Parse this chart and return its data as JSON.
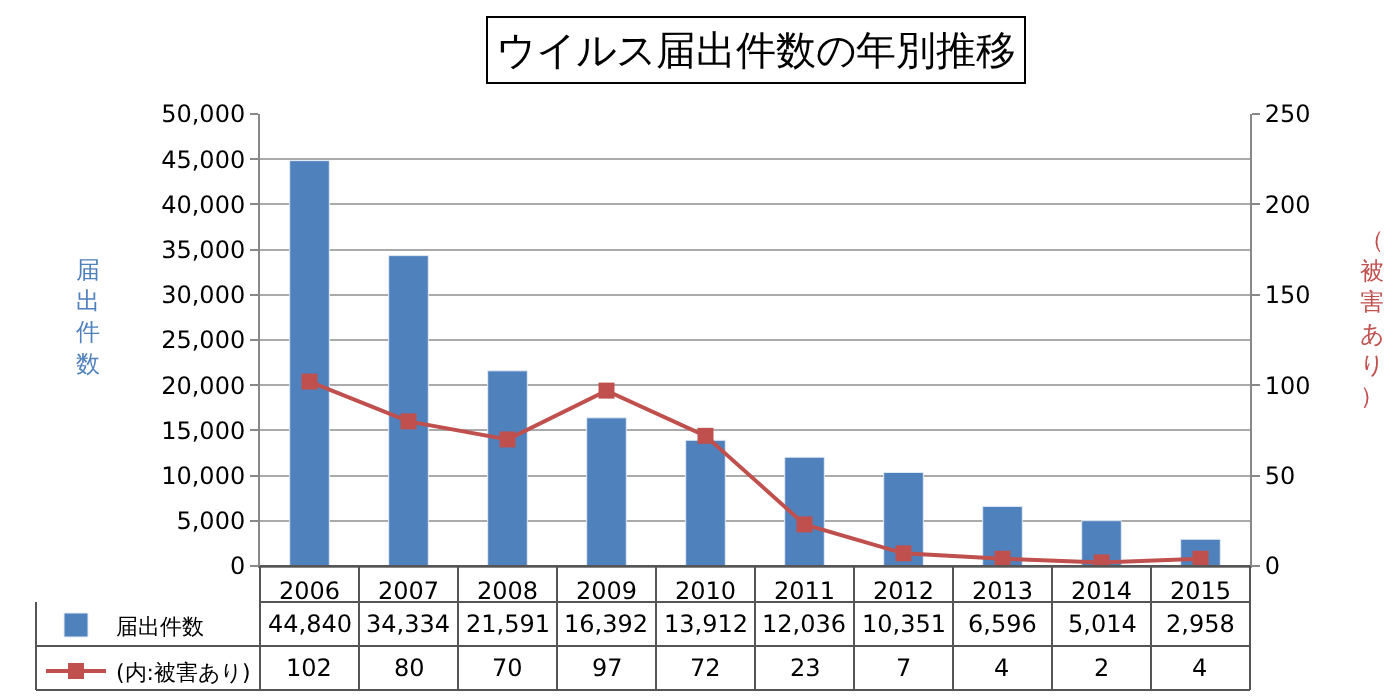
{
  "chart_data": {
    "type": "bar",
    "title": "ウイルス届出件数の年別推移",
    "ylabel": "届出件数",
    "y2label": "（被害あり）",
    "categories": [
      "2006",
      "2007",
      "2008",
      "2009",
      "2010",
      "2011",
      "2012",
      "2013",
      "2014",
      "2015"
    ],
    "series": [
      {
        "name": "届出件数",
        "color": "#4f81bd",
        "values": [
          44840,
          34334,
          21591,
          16392,
          13912,
          12036,
          10351,
          6596,
          5014,
          2958
        ],
        "value_labels": [
          "44,840",
          "34,334",
          "21,591",
          "16,392",
          "13,912",
          "12,036",
          "10,351",
          "6,596",
          "5,014",
          "2,958"
        ]
      },
      {
        "name": "(内:被害あり)",
        "type": "line",
        "axis": "y2",
        "color": "#c0504d",
        "marker": "square",
        "values": [
          102,
          80,
          70,
          97,
          72,
          23,
          7,
          4,
          2,
          4
        ],
        "value_labels": [
          "102",
          "80",
          "70",
          "97",
          "72",
          "23",
          "7",
          "4",
          "2",
          "4"
        ]
      }
    ],
    "ylim": [
      0,
      50000
    ],
    "yticks": [
      {
        "value": 0,
        "label": "0"
      },
      {
        "value": 5000,
        "label": "5,000"
      },
      {
        "value": 10000,
        "label": "10,000"
      },
      {
        "value": 15000,
        "label": "15,000"
      },
      {
        "value": 20000,
        "label": "20,000"
      },
      {
        "value": 25000,
        "label": "25,000"
      },
      {
        "value": 30000,
        "label": "30,000"
      },
      {
        "value": 35000,
        "label": "35,000"
      },
      {
        "value": 40000,
        "label": "40,000"
      },
      {
        "value": 45000,
        "label": "45,000"
      },
      {
        "value": 50000,
        "label": "50,000"
      }
    ],
    "y2lim": [
      0,
      250
    ],
    "y2ticks": [
      0,
      50,
      100,
      150,
      200,
      250
    ],
    "grid": "y",
    "legend": "bottom"
  }
}
